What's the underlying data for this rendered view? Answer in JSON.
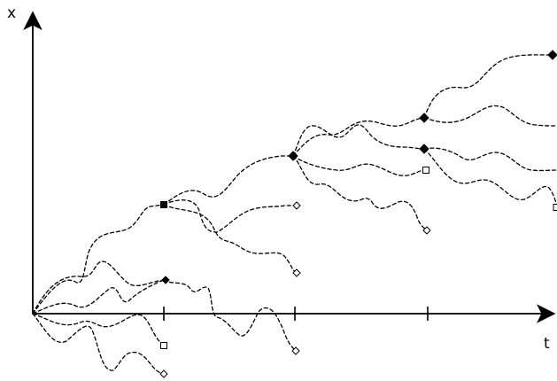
{
  "diagram": {
    "x_axis_label": "t",
    "y_axis_label": "x",
    "tick_count": 3,
    "node_kinds": {
      "filled": "branch-or-survivor",
      "open": "terminated"
    },
    "colors": {
      "stroke": "#000000",
      "background": "#ffffff"
    }
  }
}
